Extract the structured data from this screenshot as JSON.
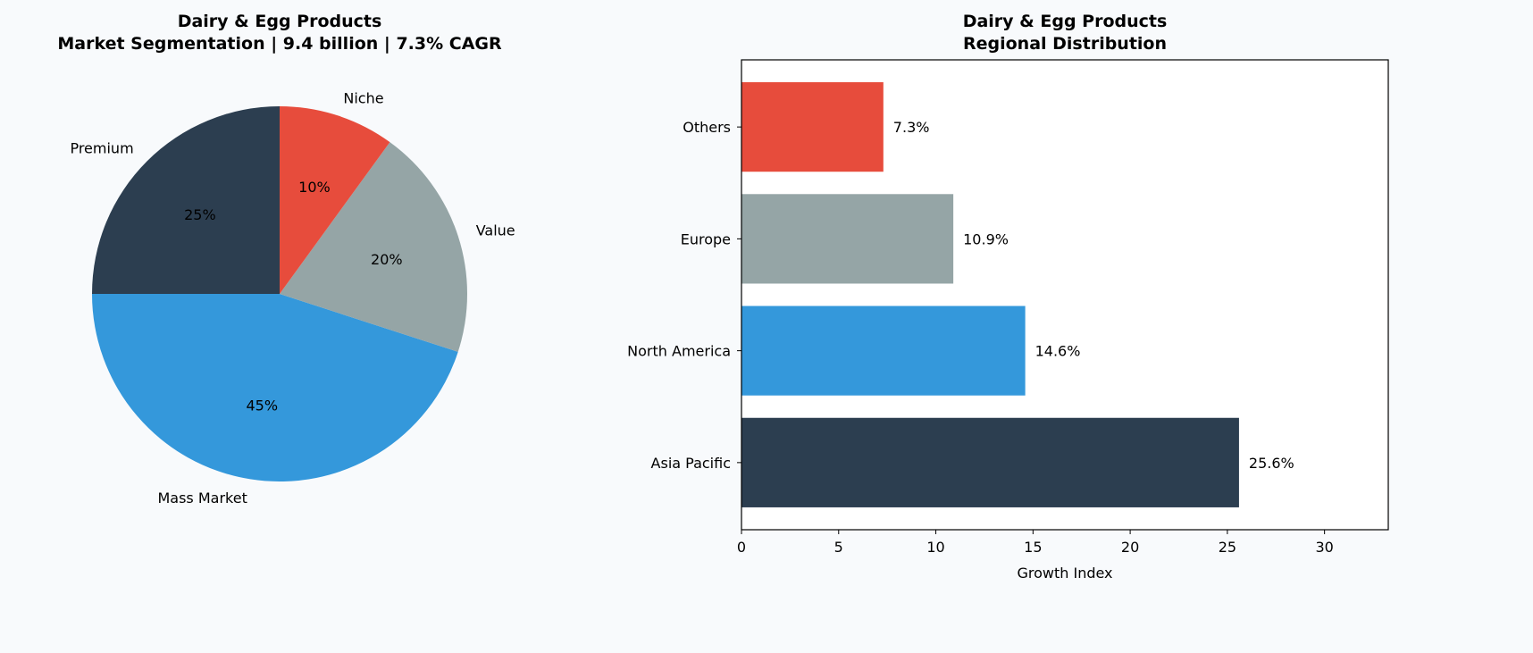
{
  "chart_data": [
    {
      "type": "pie",
      "title": [
        "Dairy & Egg Products",
        "Market Segmentation | 9.4 billion | 7.3% CAGR"
      ],
      "labels": [
        "Premium",
        "Mass Market",
        "Value",
        "Niche"
      ],
      "values": [
        25,
        45,
        20,
        10
      ],
      "value_labels": [
        "25%",
        "45%",
        "20%",
        "10%"
      ],
      "colors": [
        "#2c3e50",
        "#3498db",
        "#95a5a6",
        "#e74c3c"
      ],
      "start_angle": 90,
      "direction": "counterclockwise"
    },
    {
      "type": "bar",
      "orientation": "horizontal",
      "title": [
        "Dairy & Egg Products",
        "Regional Distribution"
      ],
      "categories": [
        "Asia Pacific",
        "North America",
        "Europe",
        "Others"
      ],
      "values": [
        25.6,
        14.6,
        10.9,
        7.3
      ],
      "value_labels": [
        "25.6%",
        "14.6%",
        "10.9%",
        "7.3%"
      ],
      "colors": [
        "#2c3e50",
        "#3498db",
        "#95a5a6",
        "#e74c3c"
      ],
      "xlabel": "Growth Index",
      "ylabel": "",
      "xlim": [
        0,
        33.28
      ],
      "xticks": [
        0,
        5,
        10,
        15,
        20,
        25,
        30
      ],
      "grid": false
    }
  ]
}
